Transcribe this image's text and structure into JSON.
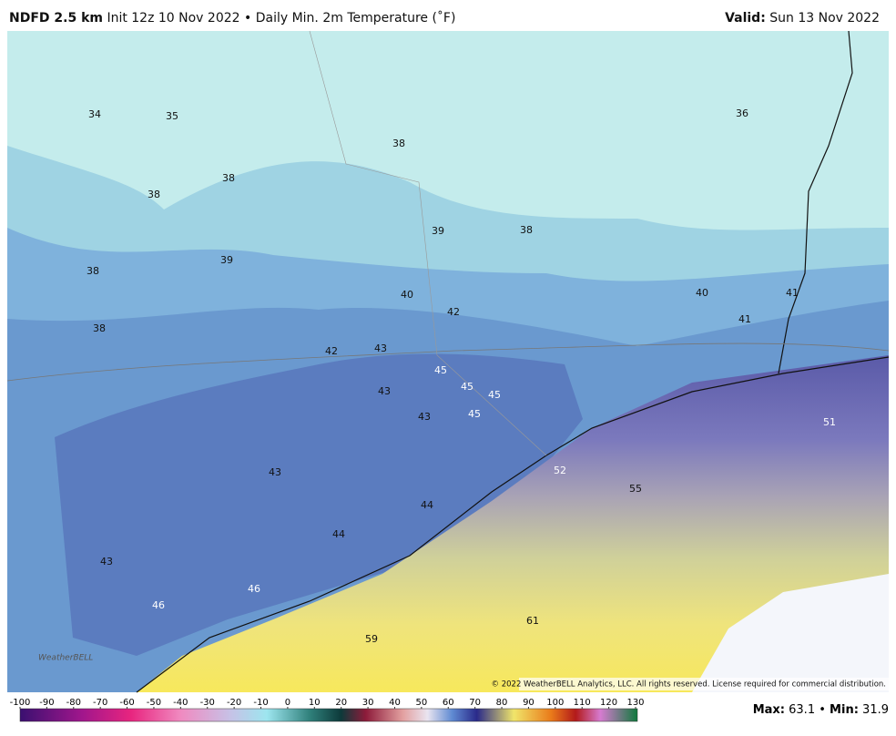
{
  "header": {
    "title": "NDFD 2.5 km",
    "subtitle": "Init 12z 10 Nov 2022 • Daily Min. 2m Temperature (˚F)",
    "valid_label": "Valid:",
    "valid_date": "Sun 13 Nov 2022"
  },
  "map": {
    "labels": [
      34,
      35,
      38,
      36,
      38,
      38,
      39,
      38,
      39,
      38,
      40,
      42,
      40,
      41,
      41,
      38,
      42,
      43,
      45,
      45,
      45,
      43,
      43,
      45,
      51,
      52,
      55,
      43,
      44,
      44,
      43,
      46,
      46,
      61,
      59
    ],
    "logo": "WeatherBELL",
    "copyright": "© 2022 WeatherBELL Analytics, LLC. All rights reserved. License required for commercial distribution."
  },
  "colorbar": {
    "ticks": [
      -100,
      -90,
      -80,
      -70,
      -60,
      -50,
      -40,
      -30,
      -20,
      -10,
      0,
      10,
      20,
      30,
      40,
      50,
      60,
      70,
      80,
      90,
      100,
      110,
      120,
      130
    ]
  },
  "stats": {
    "max_label": "Max:",
    "max": 63.1,
    "separator": "•",
    "min_label": "Min:",
    "min": 31.9
  }
}
